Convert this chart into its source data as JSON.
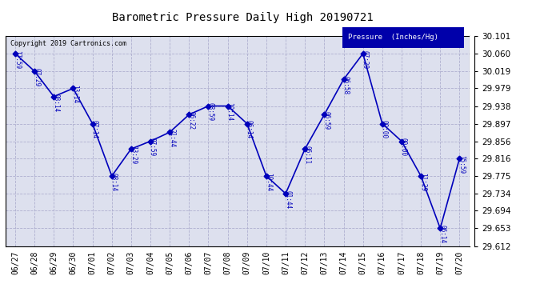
{
  "title": "Barometric Pressure Daily High 20190721",
  "legend_label": "Pressure  (Inches/Hg)",
  "copyright_text": "Copyright 2019 Cartronics.com",
  "line_color": "#0000bb",
  "background_color": "#ffffff",
  "plot_bg_color": "#dde0ee",
  "grid_color": "#aaaacc",
  "ylim_min": 29.612,
  "ylim_max": 30.101,
  "yticks": [
    29.612,
    29.653,
    29.694,
    29.734,
    29.775,
    29.816,
    29.856,
    29.897,
    29.938,
    29.979,
    30.019,
    30.06,
    30.101
  ],
  "dates": [
    "06/27",
    "06/28",
    "06/29",
    "06/30",
    "07/01",
    "07/02",
    "07/03",
    "07/04",
    "07/05",
    "07/06",
    "07/07",
    "07/08",
    "07/09",
    "07/10",
    "07/11",
    "07/12",
    "07/13",
    "07/14",
    "07/15",
    "07/16",
    "07/17",
    "07/18",
    "07/19",
    "07/20"
  ],
  "values": [
    30.06,
    30.019,
    29.96,
    29.979,
    29.897,
    29.775,
    29.838,
    29.856,
    29.877,
    29.918,
    29.938,
    29.938,
    29.897,
    29.775,
    29.734,
    29.838,
    29.918,
    30.0,
    30.06,
    29.897,
    29.856,
    29.775,
    29.653,
    29.816
  ],
  "time_labels": [
    "17:59",
    "07:29",
    "08:14",
    "13:14",
    "07:14",
    "08:14",
    "13:29",
    "07:59",
    "21:44",
    "06:22",
    "08:59",
    "10:14",
    "06:14",
    "10:44",
    "01:44",
    "06:11",
    "06:59",
    "06:58",
    "07:29",
    "00:00",
    "00:00",
    "11:29",
    "06:14",
    "15:59"
  ],
  "figwidth": 6.9,
  "figheight": 3.75,
  "dpi": 100
}
